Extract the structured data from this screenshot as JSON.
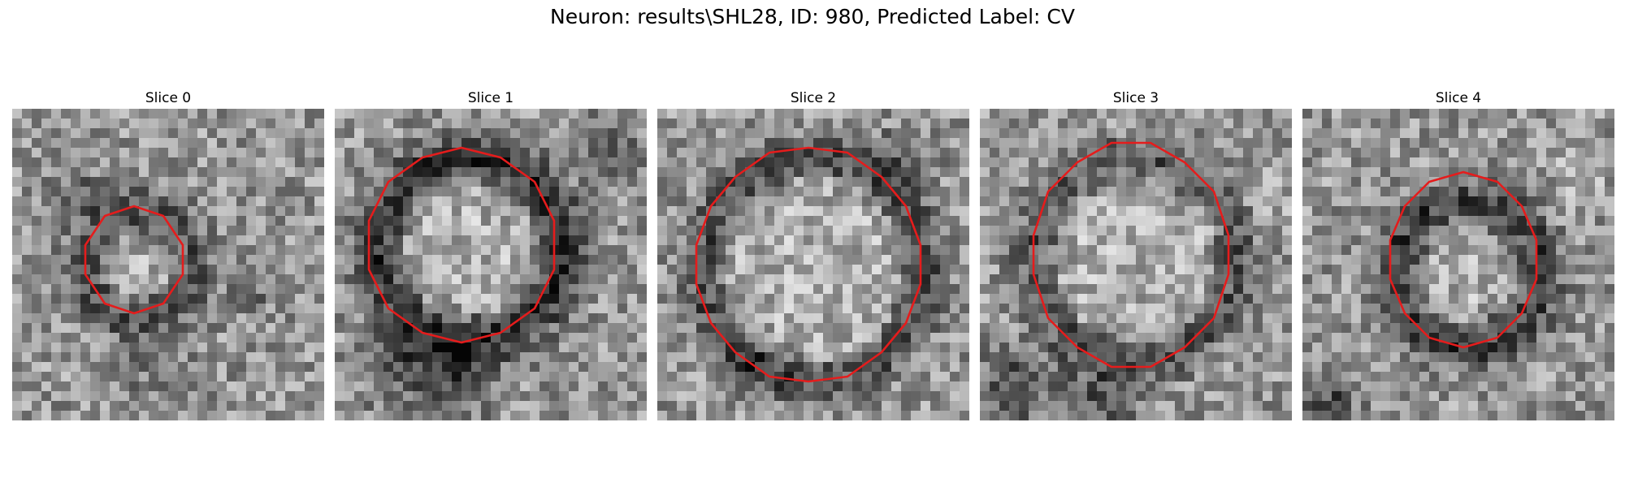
{
  "figure": {
    "title": "Neuron: results\\SHL28, ID: 980, Predicted Label: CV"
  },
  "panels": [
    {
      "title": "Slice 0",
      "contour_color": "#e51c1c"
    },
    {
      "title": "Slice 1",
      "contour_color": "#e51c1c"
    },
    {
      "title": "Slice 2",
      "contour_color": "#e51c1c"
    },
    {
      "title": "Slice 3",
      "contour_color": "#e51c1c"
    },
    {
      "title": "Slice 4",
      "contour_color": "#e51c1c"
    }
  ],
  "colormap": "gray"
}
